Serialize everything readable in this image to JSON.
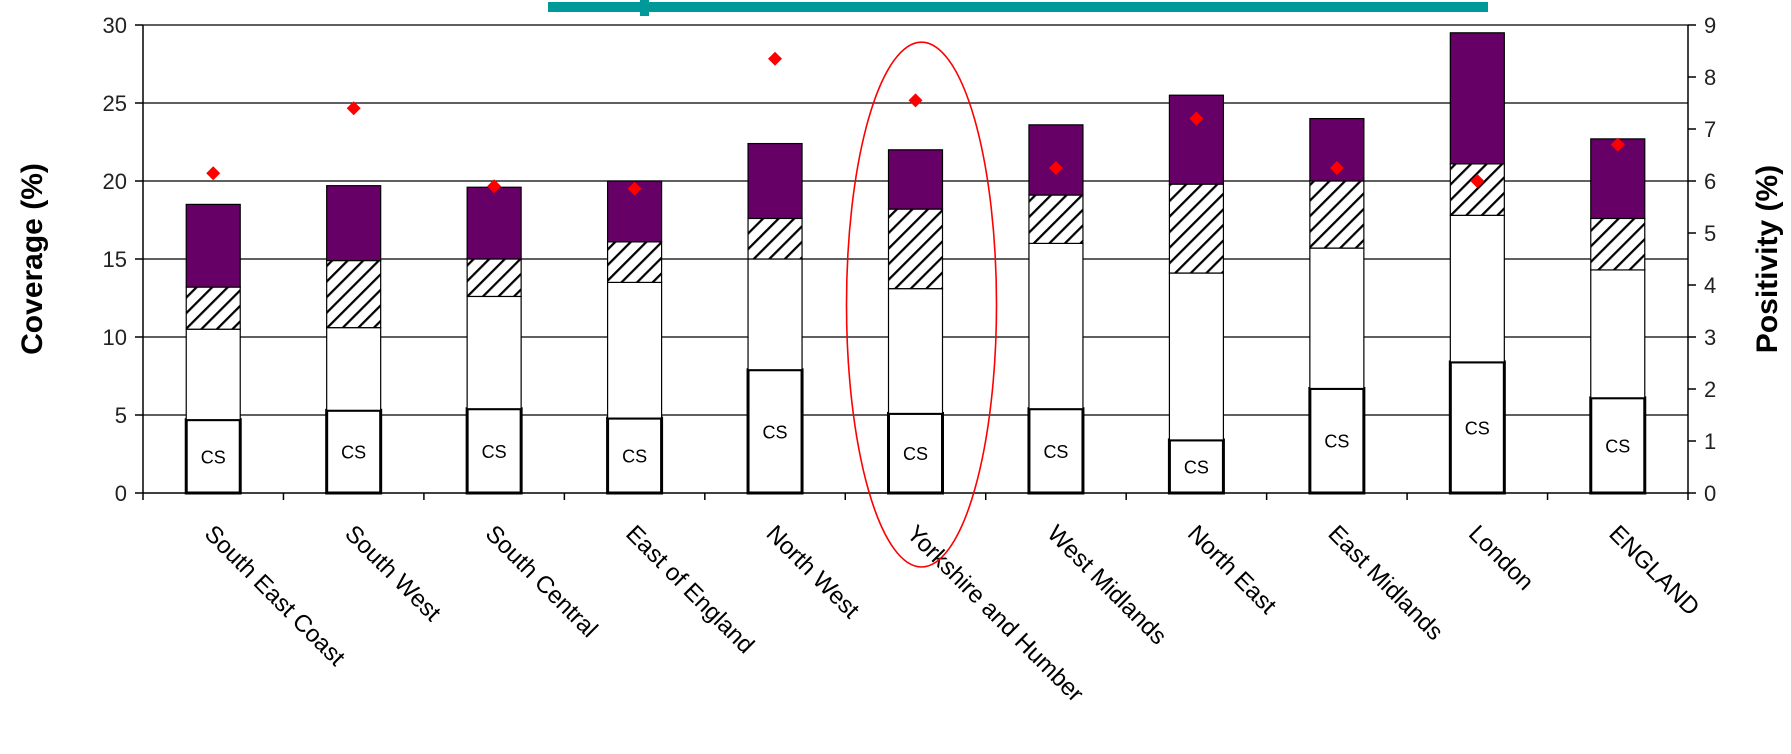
{
  "chart_data": {
    "type": "bar",
    "stacked": true,
    "categories": [
      "South East Coast",
      "South West",
      "South Central",
      "East of England",
      "North West",
      "Yorkshire and Humber",
      "West Midlands",
      "North East",
      "East Midlands",
      "London",
      "ENGLAND"
    ],
    "ylabel": "Coverage (%)",
    "ylabel_right": "Positivity (%)",
    "ylim": [
      0,
      30
    ],
    "ylim_right": [
      0,
      9
    ],
    "yticks": [
      0,
      5,
      10,
      15,
      20,
      25,
      30
    ],
    "yticks_right": [
      0,
      1,
      2,
      3,
      4,
      5,
      6,
      7,
      8,
      9
    ],
    "grid": true,
    "bar_label": "CS",
    "series": [
      {
        "style": "white-thick-outline",
        "values": [
          4.7,
          5.3,
          5.4,
          4.8,
          7.9,
          5.1,
          5.4,
          3.4,
          6.7,
          8.4,
          6.1
        ]
      },
      {
        "style": "white",
        "values": [
          5.8,
          5.3,
          7.2,
          8.7,
          7.1,
          8.0,
          10.6,
          10.7,
          9.0,
          9.4,
          8.2
        ]
      },
      {
        "style": "hatched",
        "values": [
          2.7,
          4.3,
          2.4,
          2.6,
          2.6,
          5.1,
          3.1,
          5.7,
          4.3,
          3.3,
          3.3
        ]
      },
      {
        "style": "purple",
        "values": [
          5.3,
          4.8,
          4.6,
          3.9,
          4.8,
          3.8,
          4.5,
          5.7,
          4.0,
          8.4,
          5.1
        ]
      }
    ],
    "positivity": [
      6.15,
      7.4,
      5.9,
      5.85,
      8.35,
      7.55,
      6.25,
      7.2,
      6.25,
      6.0,
      6.7
    ],
    "highlight_category": "Yorkshire and Humber",
    "colors": {
      "purple": "#660066",
      "marker": "#ff0000",
      "ellipse": "#ff0000",
      "teal_bar": "#009999",
      "grid": "#000000"
    }
  }
}
